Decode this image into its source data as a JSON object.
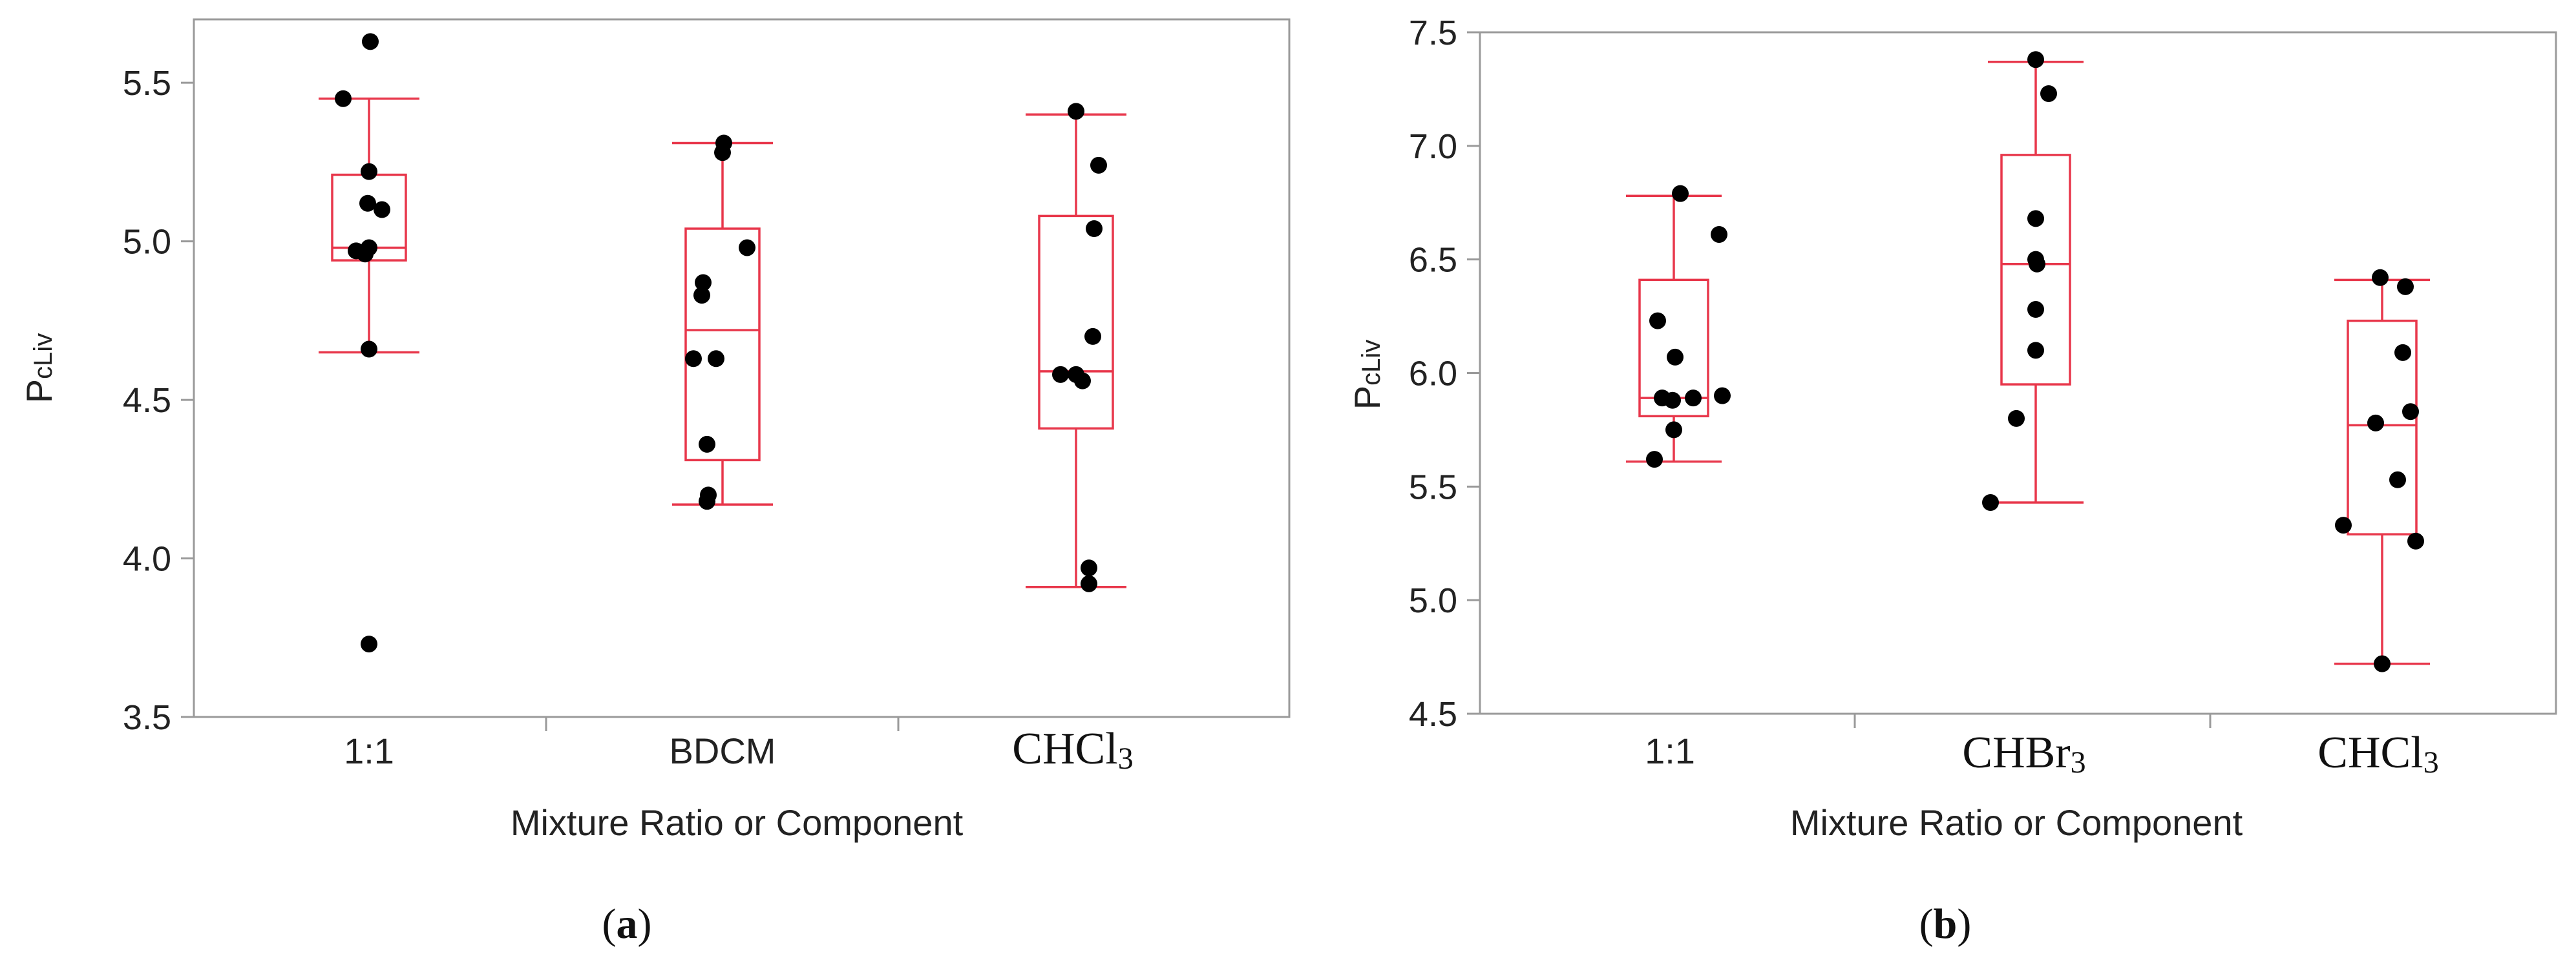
{
  "chart_data": [
    {
      "type": "box",
      "panel": "(a)",
      "ylabel": "PcLiv",
      "xlabel": "Mixture Ratio or Component",
      "ylim": [
        3.5,
        5.7
      ],
      "yticks": [
        3.5,
        4.0,
        4.5,
        5.0,
        5.5
      ],
      "categories": [
        "1:1",
        "BDCM",
        "CHCl3"
      ],
      "groups": [
        {
          "name": "1:1",
          "min": 4.65,
          "q1": 4.94,
          "median": 4.98,
          "q3": 5.21,
          "max": 5.45,
          "points": [
            5.63,
            5.45,
            5.22,
            5.12,
            5.1,
            4.98,
            4.97,
            4.96,
            4.66,
            3.73
          ]
        },
        {
          "name": "BDCM",
          "min": 4.17,
          "q1": 4.31,
          "median": 4.72,
          "q3": 5.04,
          "max": 5.31,
          "points": [
            5.31,
            5.28,
            4.98,
            4.87,
            4.83,
            4.63,
            4.63,
            4.36,
            4.2,
            4.18
          ]
        },
        {
          "name": "CHCl3",
          "min": 3.91,
          "q1": 4.41,
          "median": 4.59,
          "q3": 5.08,
          "max": 5.4,
          "points": [
            5.41,
            5.24,
            5.04,
            4.7,
            4.58,
            4.58,
            4.56,
            3.97,
            3.92
          ]
        }
      ]
    },
    {
      "type": "box",
      "panel": "(b)",
      "ylabel": "PcLiv",
      "xlabel": "Mixture Ratio or Component",
      "ylim": [
        4.5,
        7.5
      ],
      "yticks": [
        4.5,
        5.0,
        5.5,
        6.0,
        6.5,
        7.0,
        7.5
      ],
      "categories": [
        "1:1",
        "CHBr3",
        "CHCl3"
      ],
      "groups": [
        {
          "name": "1:1",
          "min": 5.61,
          "q1": 5.81,
          "median": 5.89,
          "q3": 6.41,
          "max": 6.78,
          "points": [
            6.79,
            6.61,
            6.23,
            6.07,
            5.9,
            5.89,
            5.89,
            5.88,
            5.75,
            5.62
          ]
        },
        {
          "name": "CHBr3",
          "min": 5.43,
          "q1": 5.95,
          "median": 6.48,
          "q3": 6.96,
          "max": 7.37,
          "points": [
            7.38,
            7.23,
            6.68,
            6.5,
            6.48,
            6.28,
            6.1,
            5.8,
            5.43
          ]
        },
        {
          "name": "CHCl3",
          "min": 4.72,
          "q1": 5.29,
          "median": 5.77,
          "q3": 6.23,
          "max": 6.41,
          "points": [
            6.42,
            6.38,
            6.09,
            5.83,
            5.78,
            5.53,
            5.33,
            5.26,
            4.72
          ]
        }
      ]
    }
  ],
  "labels": {
    "a": {
      "ylabel_main": "P",
      "ylabel_sub": "cLiv",
      "xlabel": "Mixture Ratio or Component",
      "cat1": "1:1",
      "cat2": "BDCM",
      "cat3_main": "CHCl",
      "cat3_sub": "3",
      "caption": "a"
    },
    "b": {
      "ylabel_main": "P",
      "ylabel_sub": "cLiv",
      "xlabel": "Mixture Ratio or Component",
      "cat1": "1:1",
      "cat2_main": "CHBr",
      "cat2_sub": "3",
      "cat3_main": "CHCl",
      "cat3_sub": "3",
      "caption": "b"
    }
  },
  "colors": {
    "box": "#e8374b",
    "point": "#000000",
    "frame": "#9a9a9a",
    "text": "#222222"
  }
}
